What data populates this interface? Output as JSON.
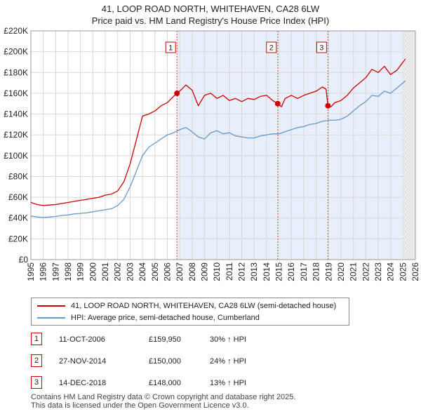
{
  "title_line1": "41, LOOP ROAD NORTH, WHITEHAVEN, CA28 6LW",
  "title_line2": "Price paid vs. HM Land Registry's House Price Index (HPI)",
  "colors": {
    "property": "#cc0000",
    "hpi": "#6699cc",
    "shade": "#e8eefa",
    "grid": "#d8d8d8"
  },
  "chart_data": {
    "type": "line",
    "ylim": [
      0,
      220000
    ],
    "xlim": [
      1995,
      2026
    ],
    "y_ticks": [
      0,
      20000,
      40000,
      60000,
      80000,
      100000,
      120000,
      140000,
      160000,
      180000,
      200000,
      220000
    ],
    "y_tick_labels": [
      "£0",
      "£20K",
      "£40K",
      "£60K",
      "£80K",
      "£100K",
      "£120K",
      "£140K",
      "£160K",
      "£180K",
      "£200K",
      "£220K"
    ],
    "x_ticks": [
      1995,
      1996,
      1997,
      1998,
      1999,
      2000,
      2001,
      2002,
      2003,
      2004,
      2005,
      2006,
      2007,
      2008,
      2009,
      2010,
      2011,
      2012,
      2013,
      2014,
      2015,
      2016,
      2017,
      2018,
      2019,
      2020,
      2021,
      2022,
      2023,
      2024,
      2025,
      2026
    ],
    "x_tick_labels": [
      "1995",
      "1996",
      "1997",
      "1998",
      "1999",
      "2000",
      "2001",
      "2002",
      "2003",
      "2004",
      "2005",
      "2006",
      "2007",
      "2008",
      "2009",
      "2010",
      "2011",
      "2012",
      "2013",
      "2014",
      "2015",
      "2016",
      "2017",
      "2018",
      "2019",
      "2020",
      "2021",
      "2022",
      "2023",
      "2024",
      "2025",
      "2026"
    ],
    "shaded_ranges": [
      [
        2006.0,
        2007.0
      ],
      [
        2014.0,
        2015.0
      ],
      [
        2018.0,
        2019.0
      ]
    ],
    "projection_start": 2025.0,
    "series": [
      {
        "name": "41, LOOP ROAD NORTH, WHITEHAVEN, CA28 6LW (semi-detached house)",
        "color": "#cc0000",
        "x": [
          1995.0,
          1995.5,
          1996.0,
          1996.5,
          1997.0,
          1997.5,
          1998.0,
          1998.5,
          1999.0,
          1999.5,
          2000.0,
          2000.5,
          2001.0,
          2001.5,
          2002.0,
          2002.5,
          2003.0,
          2003.5,
          2004.0,
          2004.5,
          2005.0,
          2005.5,
          2006.0,
          2006.5,
          2006.78,
          2007.0,
          2007.5,
          2008.0,
          2008.5,
          2009.0,
          2009.5,
          2010.0,
          2010.5,
          2011.0,
          2011.5,
          2012.0,
          2012.5,
          2013.0,
          2013.5,
          2014.0,
          2014.5,
          2014.9,
          2015.2,
          2015.5,
          2016.0,
          2016.5,
          2017.0,
          2017.5,
          2018.0,
          2018.5,
          2018.8,
          2018.95,
          2019.2,
          2019.5,
          2020.0,
          2020.5,
          2021.0,
          2021.5,
          2022.0,
          2022.5,
          2023.0,
          2023.5,
          2024.0,
          2024.5,
          2025.0,
          2025.2
        ],
        "values": [
          55000,
          53000,
          52000,
          52500,
          53000,
          54000,
          55000,
          56000,
          57000,
          58000,
          59000,
          60000,
          62000,
          63000,
          66000,
          75000,
          92000,
          115000,
          138000,
          140000,
          143000,
          148000,
          151000,
          157000,
          159950,
          162000,
          168000,
          163000,
          148000,
          158000,
          160000,
          155000,
          158000,
          153000,
          155000,
          152000,
          155000,
          154000,
          157000,
          158000,
          153000,
          150000,
          147000,
          155000,
          158000,
          155000,
          158000,
          160000,
          162000,
          166000,
          164000,
          148000,
          147000,
          151000,
          153000,
          158000,
          165000,
          170000,
          175000,
          183000,
          180000,
          186000,
          178000,
          182000,
          190000,
          193000
        ]
      },
      {
        "name": "HPI: Average price, semi-detached house, Cumberland",
        "color": "#6699cc",
        "x": [
          1995.0,
          1995.5,
          1996.0,
          1996.5,
          1997.0,
          1997.5,
          1998.0,
          1998.5,
          1999.0,
          1999.5,
          2000.0,
          2000.5,
          2001.0,
          2001.5,
          2002.0,
          2002.5,
          2003.0,
          2003.5,
          2004.0,
          2004.5,
          2005.0,
          2005.5,
          2006.0,
          2006.5,
          2007.0,
          2007.5,
          2008.0,
          2008.5,
          2009.0,
          2009.5,
          2010.0,
          2010.5,
          2011.0,
          2011.5,
          2012.0,
          2012.5,
          2013.0,
          2013.5,
          2014.0,
          2014.5,
          2015.0,
          2015.5,
          2016.0,
          2016.5,
          2017.0,
          2017.5,
          2018.0,
          2018.5,
          2019.0,
          2019.5,
          2020.0,
          2020.5,
          2021.0,
          2021.5,
          2022.0,
          2022.5,
          2023.0,
          2023.5,
          2024.0,
          2024.5,
          2025.0,
          2025.2
        ],
        "values": [
          42000,
          41000,
          40500,
          41000,
          41500,
          42500,
          43000,
          44000,
          44500,
          45000,
          46000,
          47000,
          48000,
          49000,
          52000,
          58000,
          70000,
          85000,
          100000,
          108000,
          112000,
          116000,
          120000,
          122000,
          125000,
          127000,
          123000,
          118000,
          116000,
          122000,
          124000,
          121000,
          122000,
          119000,
          118000,
          117000,
          117000,
          119000,
          120000,
          121000,
          121000,
          123000,
          125000,
          127000,
          128000,
          130000,
          131000,
          133000,
          134000,
          134000,
          135000,
          138000,
          143000,
          148000,
          152000,
          158000,
          157000,
          162000,
          160000,
          165000,
          170000,
          172000
        ]
      }
    ],
    "sales": [
      {
        "label": "1",
        "x": 2006.78,
        "y": 159950
      },
      {
        "label": "2",
        "x": 2014.9,
        "y": 150000
      },
      {
        "label": "3",
        "x": 2018.95,
        "y": 148000
      }
    ]
  },
  "legend": {
    "property_label": "41, LOOP ROAD NORTH, WHITEHAVEN, CA28 6LW (semi-detached house)",
    "hpi_label": "HPI: Average price, semi-detached house, Cumberland"
  },
  "sales_table": [
    {
      "num": "1",
      "date": "11-OCT-2006",
      "price": "£159,950",
      "hpi": "30% ↑ HPI"
    },
    {
      "num": "2",
      "date": "27-NOV-2014",
      "price": "£150,000",
      "hpi": "24% ↑ HPI"
    },
    {
      "num": "3",
      "date": "14-DEC-2018",
      "price": "£148,000",
      "hpi": "13% ↑ HPI"
    }
  ],
  "footer_line1": "Contains HM Land Registry data © Crown copyright and database right 2025.",
  "footer_line2": "This data is licensed under the Open Government Licence v3.0."
}
